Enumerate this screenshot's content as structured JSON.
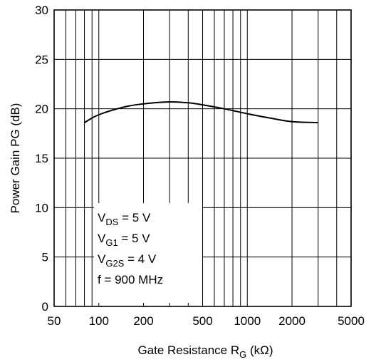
{
  "chart_data": {
    "type": "line",
    "xscale": "log",
    "xlim": [
      50,
      5000
    ],
    "ylim": [
      0,
      30
    ],
    "grid": true,
    "xticks": [
      50,
      100,
      200,
      500,
      1000,
      2000,
      5000
    ],
    "xtick_labels": [
      "50",
      "100",
      "200",
      "500",
      "1000",
      "2000",
      "5000"
    ],
    "yticks": [
      0,
      5,
      10,
      15,
      20,
      25,
      30
    ],
    "ytick_labels": [
      "0",
      "5",
      "10",
      "15",
      "20",
      "25",
      "30"
    ],
    "xlabel": {
      "main": "Gate Resistance R",
      "sub": "G",
      "unit": " (kΩ)"
    },
    "ylabel": "Power Gain PG (dB)",
    "series": [
      {
        "x": [
          80,
          100,
          150,
          200,
          300,
          400,
          500,
          700,
          1000,
          1500,
          2000,
          3000
        ],
        "y": [
          18.6,
          19.4,
          20.2,
          20.5,
          20.7,
          20.6,
          20.4,
          20.0,
          19.5,
          19.0,
          18.7,
          18.6
        ]
      }
    ],
    "conditions": [
      {
        "main": "V",
        "sub": "DS",
        "rest": " = 5 V"
      },
      {
        "main": "V",
        "sub": "G1",
        "rest": " = 5 V"
      },
      {
        "main": "V",
        "sub": "G2S",
        "rest": " = 4 V"
      },
      {
        "main": "f = 900 MHz",
        "sub": "",
        "rest": ""
      }
    ],
    "colors": {
      "line": "#000000",
      "grid": "#000000",
      "background": "#ffffff"
    }
  }
}
